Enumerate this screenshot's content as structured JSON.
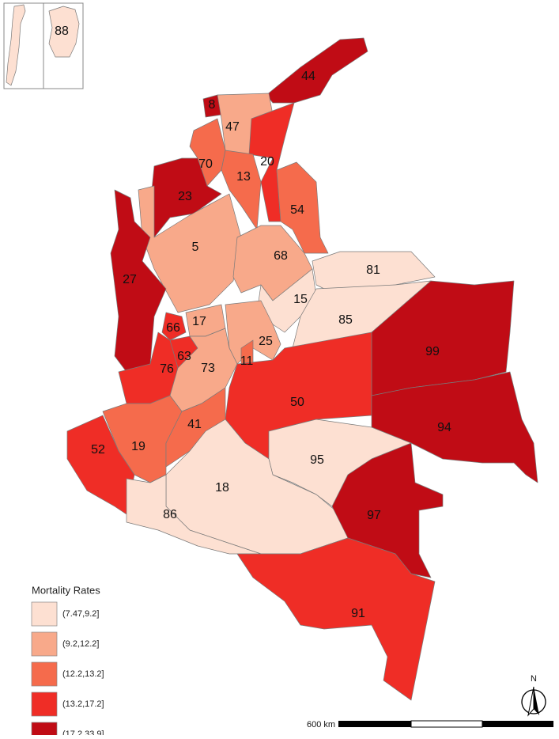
{
  "regions": [
    {
      "label": "88",
      "color": "#fde0d2"
    },
    {
      "label": "44",
      "color": "#c00c15"
    },
    {
      "label": "8",
      "color": "#c00c15"
    },
    {
      "label": "47",
      "color": "#f8a98a"
    },
    {
      "label": "20",
      "color": "#ef2d26"
    },
    {
      "label": "70",
      "color": "#f56b4c"
    },
    {
      "label": "13",
      "color": "#f56b4c"
    },
    {
      "label": "23",
      "color": "#c00c15"
    },
    {
      "label": "54",
      "color": "#f56b4c"
    },
    {
      "label": "5",
      "color": "#f8a98a"
    },
    {
      "label": "68",
      "color": "#f8a98a"
    },
    {
      "label": "27",
      "color": "#c00c15"
    },
    {
      "label": "81",
      "color": "#fde0d2"
    },
    {
      "label": "15",
      "color": "#fde0d2"
    },
    {
      "label": "85",
      "color": "#fde0d2"
    },
    {
      "label": "99",
      "color": "#c00c15"
    },
    {
      "label": "66",
      "color": "#ef2d26"
    },
    {
      "label": "17",
      "color": "#f8a98a"
    },
    {
      "label": "25",
      "color": "#f8a98a"
    },
    {
      "label": "63",
      "color": "#ef2d26"
    },
    {
      "label": "76",
      "color": "#ef2d26"
    },
    {
      "label": "73",
      "color": "#f8a98a"
    },
    {
      "label": "11",
      "color": "#f56b4c"
    },
    {
      "label": "50",
      "color": "#ef2d26"
    },
    {
      "label": "94",
      "color": "#c00c15"
    },
    {
      "label": "19",
      "color": "#f56b4c"
    },
    {
      "label": "41",
      "color": "#f56b4c"
    },
    {
      "label": "95",
      "color": "#fde0d2"
    },
    {
      "label": "52",
      "color": "#ef2d26"
    },
    {
      "label": "18",
      "color": "#fde0d2"
    },
    {
      "label": "86",
      "color": "#fde0d2"
    },
    {
      "label": "97",
      "color": "#c00c15"
    },
    {
      "label": "91",
      "color": "#ef2d26"
    }
  ],
  "legend": {
    "title": "Mortality Rates",
    "items": [
      {
        "label": "(7.47,9.2]",
        "color": "#fde0d2"
      },
      {
        "label": "(9.2,12.2]",
        "color": "#f8a98a"
      },
      {
        "label": "(12.2,13.2]",
        "color": "#f56b4c"
      },
      {
        "label": "(13.2,17.2]",
        "color": "#ef2d26"
      },
      {
        "label": "(17.2,33.9]",
        "color": "#c00c15"
      }
    ]
  },
  "scale_bar": {
    "label": "600 km"
  },
  "north_arrow": {
    "label": "N"
  }
}
